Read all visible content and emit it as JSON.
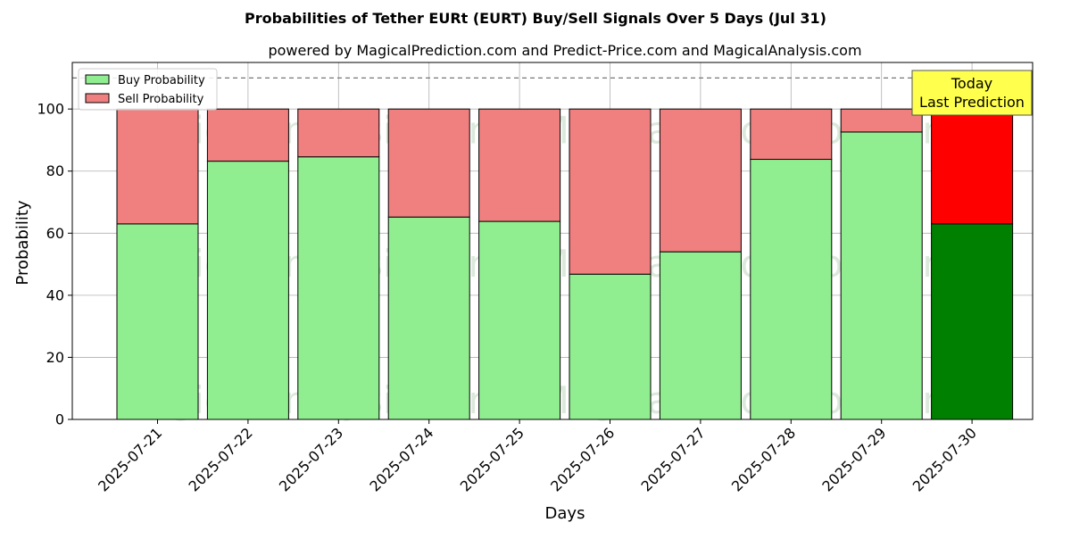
{
  "chart_data": {
    "type": "bar",
    "stacked": true,
    "title": "Probabilities of Tether EURt (EURT) Buy/Sell Signals Over 5 Days (Jul 31)",
    "subtitle": "powered by MagicalPrediction.com and Predict-Price.com and MagicalAnalysis.com",
    "xlabel": "Days",
    "ylabel": "Probability",
    "ylim": [
      0,
      115
    ],
    "yticks": [
      0,
      20,
      40,
      60,
      80,
      100
    ],
    "grid": true,
    "legend_position": "top-left",
    "reference_line": {
      "y": 110,
      "style": "dashed"
    },
    "categories": [
      "2025-07-21",
      "2025-07-22",
      "2025-07-23",
      "2025-07-24",
      "2025-07-25",
      "2025-07-26",
      "2025-07-27",
      "2025-07-28",
      "2025-07-29",
      "2025-07-30"
    ],
    "series": [
      {
        "name": "Buy Probability",
        "values": [
          63,
          83.2,
          84.6,
          65.2,
          63.8,
          46.8,
          54,
          83.8,
          92.6,
          63
        ],
        "color": "#90ee90",
        "highlight_color": "#008000"
      },
      {
        "name": "Sell Probability",
        "values": [
          37,
          16.8,
          15.4,
          34.8,
          36.2,
          53.2,
          46,
          16.2,
          7.4,
          37
        ],
        "color": "#f08080",
        "highlight_color": "#ff0000"
      }
    ],
    "highlight_index": 9,
    "annotation": {
      "lines": [
        "Today",
        "Last Prediction"
      ],
      "category_index": 9,
      "background": "#ffff4d"
    },
    "watermarks": [
      "MagicalAnalysis.com",
      "MagicalPrediction.com"
    ]
  }
}
